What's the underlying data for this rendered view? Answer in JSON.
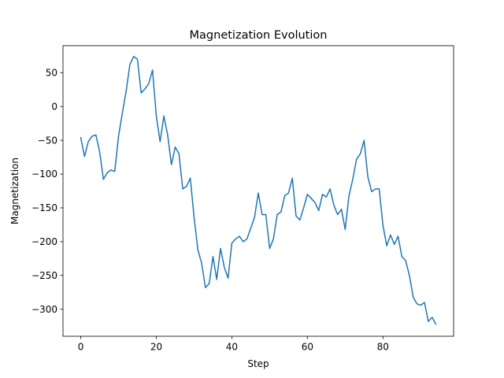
{
  "chart_data": {
    "type": "line",
    "title": "Magnetization Evolution",
    "xlabel": "Step",
    "ylabel": "Magnetization",
    "xlim": [
      -4.7,
      98.7
    ],
    "ylim": [
      -340,
      90
    ],
    "xticks": [
      0,
      20,
      40,
      60,
      80
    ],
    "yticks": [
      50,
      0,
      -50,
      -100,
      -150,
      -200,
      -250,
      -300
    ],
    "ytick_labels": [
      "50",
      "0",
      "−50",
      "−100",
      "−150",
      "−200",
      "−250",
      "−300"
    ],
    "grid": false,
    "legend": "none",
    "series": [
      {
        "color": "#1f77b4",
        "x": [
          0,
          1,
          2,
          3,
          4,
          5,
          6,
          7,
          8,
          9,
          10,
          11,
          12,
          13,
          14,
          15,
          16,
          17,
          18,
          19,
          20,
          21,
          22,
          23,
          24,
          25,
          26,
          27,
          28,
          29,
          30,
          31,
          32,
          33,
          34,
          35,
          36,
          37,
          38,
          39,
          40,
          41,
          42,
          43,
          44,
          45,
          46,
          47,
          48,
          49,
          50,
          51,
          52,
          53,
          54,
          55,
          56,
          57,
          58,
          59,
          60,
          61,
          62,
          63,
          64,
          65,
          66,
          67,
          68,
          69,
          70,
          71,
          72,
          73,
          74,
          75,
          76,
          77,
          78,
          79,
          80,
          81,
          82,
          83,
          84,
          85,
          86,
          87,
          88,
          89,
          90,
          91,
          92,
          93,
          94
        ],
        "y": [
          -46,
          -74,
          -52,
          -44,
          -42,
          -67,
          -108,
          -98,
          -94,
          -96,
          -44,
          -10,
          22,
          62,
          74,
          70,
          20,
          26,
          34,
          54,
          -14,
          -52,
          -14,
          -42,
          -86,
          -60,
          -70,
          -122,
          -118,
          -106,
          -164,
          -212,
          -232,
          -268,
          -262,
          -222,
          -256,
          -210,
          -238,
          -254,
          -202,
          -196,
          -192,
          -200,
          -196,
          -180,
          -164,
          -128,
          -160,
          -160,
          -210,
          -196,
          -160,
          -156,
          -132,
          -128,
          -106,
          -162,
          -168,
          -150,
          -130,
          -136,
          -142,
          -154,
          -130,
          -134,
          -122,
          -146,
          -160,
          -152,
          -182,
          -132,
          -108,
          -78,
          -70,
          -50,
          -104,
          -126,
          -122,
          -122,
          -176,
          -206,
          -190,
          -204,
          -192,
          -222,
          -228,
          -250,
          -282,
          -292,
          -294,
          -290,
          -318,
          -312,
          -322
        ]
      }
    ]
  }
}
